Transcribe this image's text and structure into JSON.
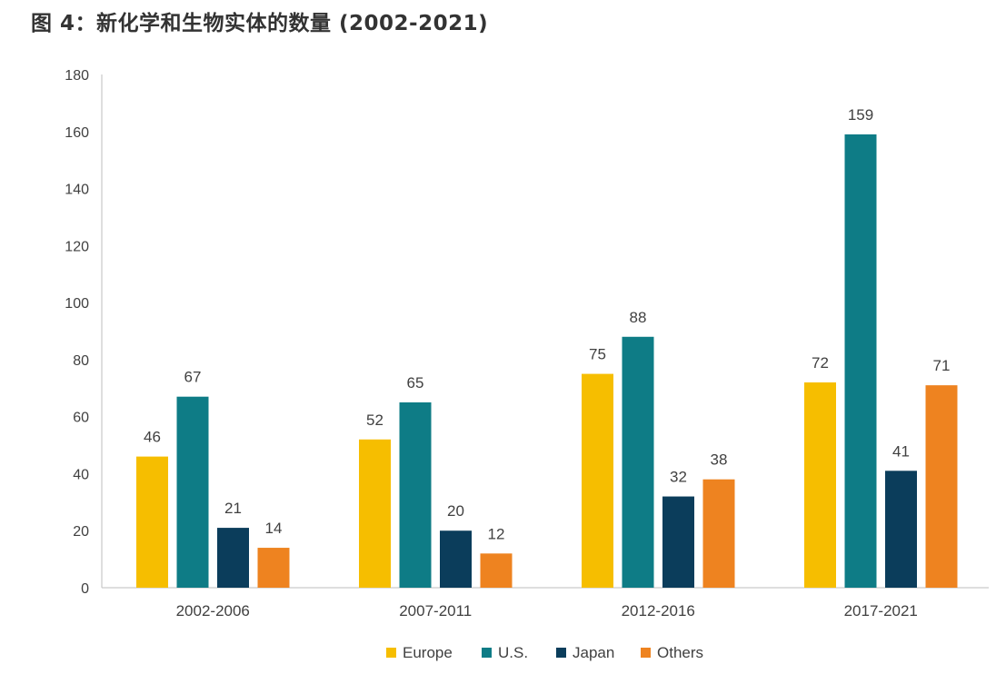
{
  "chart_data": {
    "type": "bar",
    "title": "图 4：新化学和生物实体的数量 (2002-2021)",
    "xlabel": "",
    "ylabel": "",
    "categories": [
      "2002-2006",
      "2007-2011",
      "2012-2016",
      "2017-2021"
    ],
    "series": [
      {
        "name": "Europe",
        "color": "#F6BE00",
        "values": [
          46,
          52,
          75,
          72
        ]
      },
      {
        "name": "U.S.",
        "color": "#0E7C86",
        "values": [
          67,
          65,
          88,
          159
        ]
      },
      {
        "name": "Japan",
        "color": "#0B3D5B",
        "values": [
          21,
          20,
          32,
          41
        ]
      },
      {
        "name": "Others",
        "color": "#EE8320",
        "values": [
          14,
          12,
          38,
          71
        ]
      }
    ],
    "ylim": [
      0,
      180
    ],
    "yticks": [
      0,
      20,
      40,
      60,
      80,
      100,
      120,
      140,
      160,
      180
    ],
    "grid": false,
    "legend_position": "bottom-center"
  }
}
